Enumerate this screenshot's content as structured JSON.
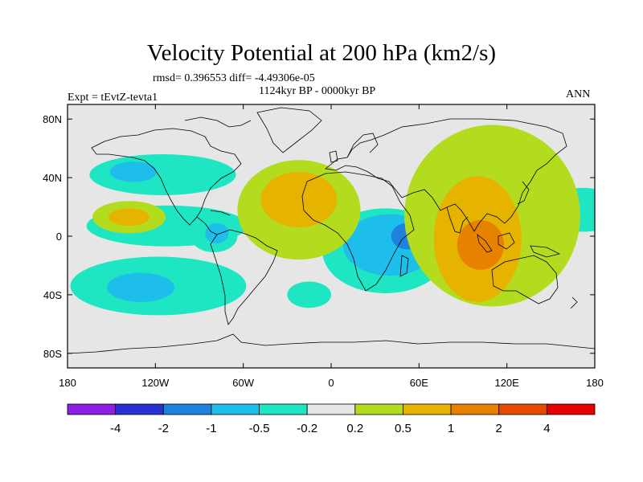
{
  "chart_data": {
    "type": "heatmap",
    "title": "Velocity Potential at 200 hPa (km2/s)",
    "stats_text": "rmsd= 0.396553  diff= -4.49306e-05",
    "period_text": "1124kyr BP - 0000kyr BP",
    "experiment_text": "Expt = tEvtZ-tevta1",
    "season_text": "ANN",
    "xlim": [
      -180,
      180
    ],
    "ylim": [
      -90,
      90
    ],
    "x_ticks": [
      {
        "value": -180,
        "label": "180"
      },
      {
        "value": -120,
        "label": "120W"
      },
      {
        "value": -60,
        "label": "60W"
      },
      {
        "value": 0,
        "label": "0"
      },
      {
        "value": 60,
        "label": "60E"
      },
      {
        "value": 120,
        "label": "120E"
      },
      {
        "value": 180,
        "label": "180"
      }
    ],
    "y_ticks": [
      {
        "value": 80,
        "label": "80N"
      },
      {
        "value": 40,
        "label": "40N"
      },
      {
        "value": 0,
        "label": "0"
      },
      {
        "value": -40,
        "label": "40S"
      },
      {
        "value": -80,
        "label": "80S"
      }
    ],
    "colorbar": {
      "colors": [
        "#8c1ee6",
        "#2832d2",
        "#1e82dc",
        "#1ebeeb",
        "#1ee6c3",
        "#e6e6e6",
        "#b4dc1e",
        "#e6b400",
        "#e68200",
        "#e64b00",
        "#e60000"
      ],
      "labels": [
        "-4",
        "-2",
        "-1",
        "-0.5",
        "-0.2",
        "0.2",
        "0.5",
        "1",
        "2",
        "4"
      ]
    },
    "regions": [
      {
        "level": "-0.2..-0.5",
        "center": [
          -115,
          42
        ],
        "radius": [
          50,
          14
        ]
      },
      {
        "level": "-0.5..-1",
        "center": [
          -135,
          44
        ],
        "radius": [
          16,
          7
        ]
      },
      {
        "level": "-0.2..-0.5",
        "center": [
          -112,
          7
        ],
        "radius": [
          55,
          14
        ]
      },
      {
        "level": "-0.2..-0.5",
        "center": [
          -80,
          0
        ],
        "radius": [
          16,
          11
        ]
      },
      {
        "level": "-0.5..-1",
        "center": [
          -78,
          2
        ],
        "radius": [
          8,
          7
        ]
      },
      {
        "level": "-0.2..-0.5",
        "center": [
          -118,
          -34
        ],
        "radius": [
          60,
          20
        ]
      },
      {
        "level": "-0.5..-1",
        "center": [
          -130,
          -35
        ],
        "radius": [
          23,
          10
        ]
      },
      {
        "level": "-0.2..-0.5",
        "center": [
          -15,
          -40
        ],
        "radius": [
          15,
          9
        ]
      },
      {
        "level": "-0.2..-0.5",
        "center": [
          37,
          -10
        ],
        "radius": [
          43,
          29
        ]
      },
      {
        "level": "-0.5..-1",
        "center": [
          40,
          -6
        ],
        "radius": [
          32,
          21
        ]
      },
      {
        "level": "-1..-2",
        "center": [
          52,
          0
        ],
        "radius": [
          11,
          9
        ]
      },
      {
        "level": "-0.2..-0.5",
        "center": [
          172,
          18
        ],
        "radius": [
          25,
          15
        ]
      },
      {
        "level": "0.2..0.5",
        "center": [
          -138,
          13
        ],
        "radius": [
          25,
          11
        ]
      },
      {
        "level": "0.5..1",
        "center": [
          -138,
          13
        ],
        "radius": [
          14,
          6
        ]
      },
      {
        "level": "0.2..0.5",
        "center": [
          -22,
          18
        ],
        "radius": [
          42,
          34
        ]
      },
      {
        "level": "0.5..1",
        "center": [
          -22,
          25
        ],
        "radius": [
          26,
          19
        ]
      },
      {
        "level": "0.2..0.5",
        "center": [
          110,
          14
        ],
        "radius": [
          60,
          62
        ]
      },
      {
        "level": "0.5..1",
        "center": [
          100,
          -2
        ],
        "radius": [
          30,
          43
        ]
      },
      {
        "level": "1..2",
        "center": [
          102,
          -6
        ],
        "radius": [
          16,
          17
        ]
      }
    ]
  }
}
